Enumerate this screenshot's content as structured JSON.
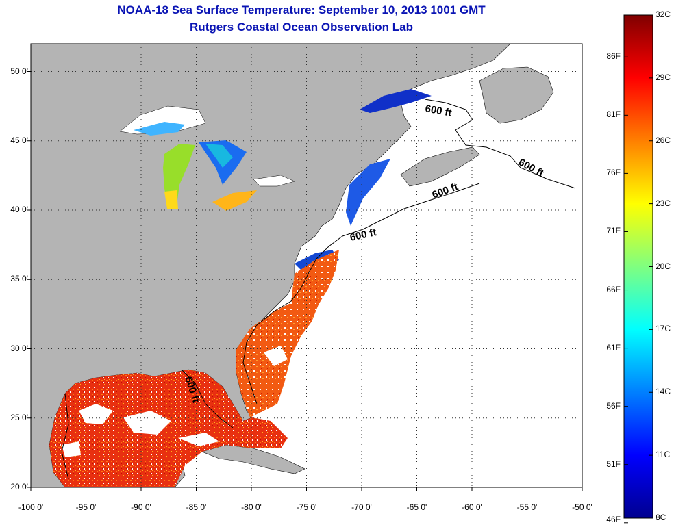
{
  "title": "NOAA-18 Sea Surface Temperature:  September 10, 2013 1001 GMT",
  "subtitle": "Rutgers Coastal Ocean Observation Lab",
  "map": {
    "lon_range": [
      -100,
      -50
    ],
    "lat_range": [
      20,
      52
    ],
    "grid": true,
    "land_color": "#b4b4b4",
    "no_data_color": "#ffffff",
    "x_ticks": [
      {
        "lon": -100,
        "label": "-100 0'"
      },
      {
        "lon": -95,
        "label": "-95 0'"
      },
      {
        "lon": -90,
        "label": "-90 0'"
      },
      {
        "lon": -85,
        "label": "-85 0'"
      },
      {
        "lon": -80,
        "label": "-80 0'"
      },
      {
        "lon": -75,
        "label": "-75 0'"
      },
      {
        "lon": -70,
        "label": "-70 0'"
      },
      {
        "lon": -65,
        "label": "-65 0'"
      },
      {
        "lon": -60,
        "label": "-60 0'"
      },
      {
        "lon": -55,
        "label": "-55 0'"
      },
      {
        "lon": -50,
        "label": "-50 0'"
      }
    ],
    "y_ticks": [
      {
        "lat": 20,
        "label": "20 0'"
      },
      {
        "lat": 25,
        "label": "25 0'"
      },
      {
        "lat": 30,
        "label": "30 0'"
      },
      {
        "lat": 35,
        "label": "35 0'"
      },
      {
        "lat": 40,
        "label": "40 0'"
      },
      {
        "lat": 45,
        "label": "45 0'"
      },
      {
        "lat": 50,
        "label": "50 0'"
      }
    ],
    "contour_labels": [
      "600 ft",
      "600 ft",
      "600 ft",
      "600 ft",
      "600 ft"
    ]
  },
  "colorbar": {
    "min_c": 8,
    "max_c": 32,
    "celsius_labels": [
      {
        "value": 32,
        "label": "32C"
      },
      {
        "value": 29,
        "label": "29C"
      },
      {
        "value": 26,
        "label": "26C"
      },
      {
        "value": 23,
        "label": "23C"
      },
      {
        "value": 20,
        "label": "20C"
      },
      {
        "value": 17,
        "label": "17C"
      },
      {
        "value": 14,
        "label": "14C"
      },
      {
        "value": 11,
        "label": "11C"
      },
      {
        "value": 8,
        "label": "8C"
      }
    ],
    "fahrenheit_labels": [
      {
        "value": 86,
        "label": "86F"
      },
      {
        "value": 81,
        "label": "81F"
      },
      {
        "value": 76,
        "label": "76F"
      },
      {
        "value": 71,
        "label": "71F"
      },
      {
        "value": 66,
        "label": "66F"
      },
      {
        "value": 61,
        "label": "61F"
      },
      {
        "value": 56,
        "label": "56F"
      },
      {
        "value": 51,
        "label": "51F"
      },
      {
        "value": 46,
        "label": "46F"
      }
    ]
  }
}
